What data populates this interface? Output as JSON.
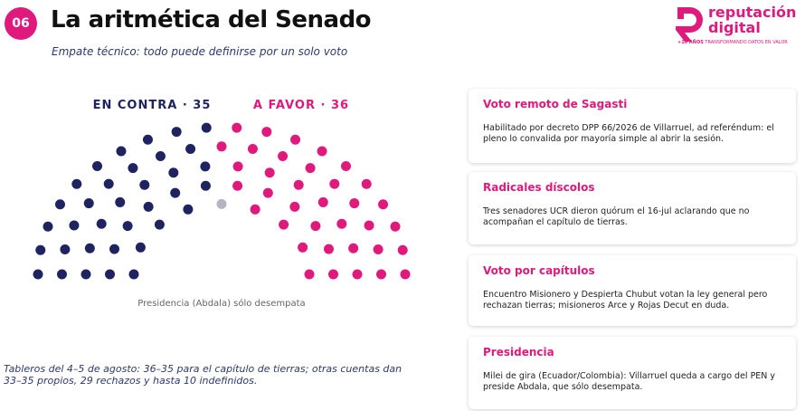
{
  "header": {
    "number": "06",
    "title": "La aritmética del Senado",
    "subtitle": "Empate técnico: todo puede definirse por un solo voto"
  },
  "logo": {
    "line1": "reputación",
    "line2": "digital",
    "tagline_bold": "+10 AÑOS",
    "tagline": "TRANSFORMANDO DATOS EN VALOR"
  },
  "chart_data": {
    "type": "parliament",
    "series": [
      {
        "label": "EN CONTRA · 35",
        "value": 35,
        "color": "#1f2460"
      },
      {
        "value": 1,
        "color": "#b3b6c2"
      },
      {
        "label": "A FAVOR · 36",
        "value": 36,
        "color": "#e0197d"
      }
    ],
    "caption": "Presidencia (Abdala) sólo desempata"
  },
  "footnote": "Tableros del 4–5 de agosto: 36–35 para el capítulo de tierras; otras cuentas dan 33–35 propios, 29 rechazos y hasta 10 indefinidos.",
  "cards": [
    {
      "title": "Voto remoto de Sagasti",
      "text": "Habilitado por decreto DPP 66/2026 de Villarruel, ad referéndum: el pleno lo convalida por mayoría simple al abrir la sesión."
    },
    {
      "title": "Radicales díscolos",
      "text": "Tres senadores UCR dieron quórum el 16-jul aclarando que no acompañan el capítulo de tierras."
    },
    {
      "title": "Voto por capítulos",
      "text": "Encuentro Misionero y Despierta Chubut votan la ley general pero rechazan tierras; misioneros Arce y Rojas Decut en duda."
    },
    {
      "title": "Presidencia",
      "text": "Milei de gira (Ecuador/Colombia): Villarruel queda a cargo del PEN y preside Abdala, que sólo desempata."
    }
  ]
}
